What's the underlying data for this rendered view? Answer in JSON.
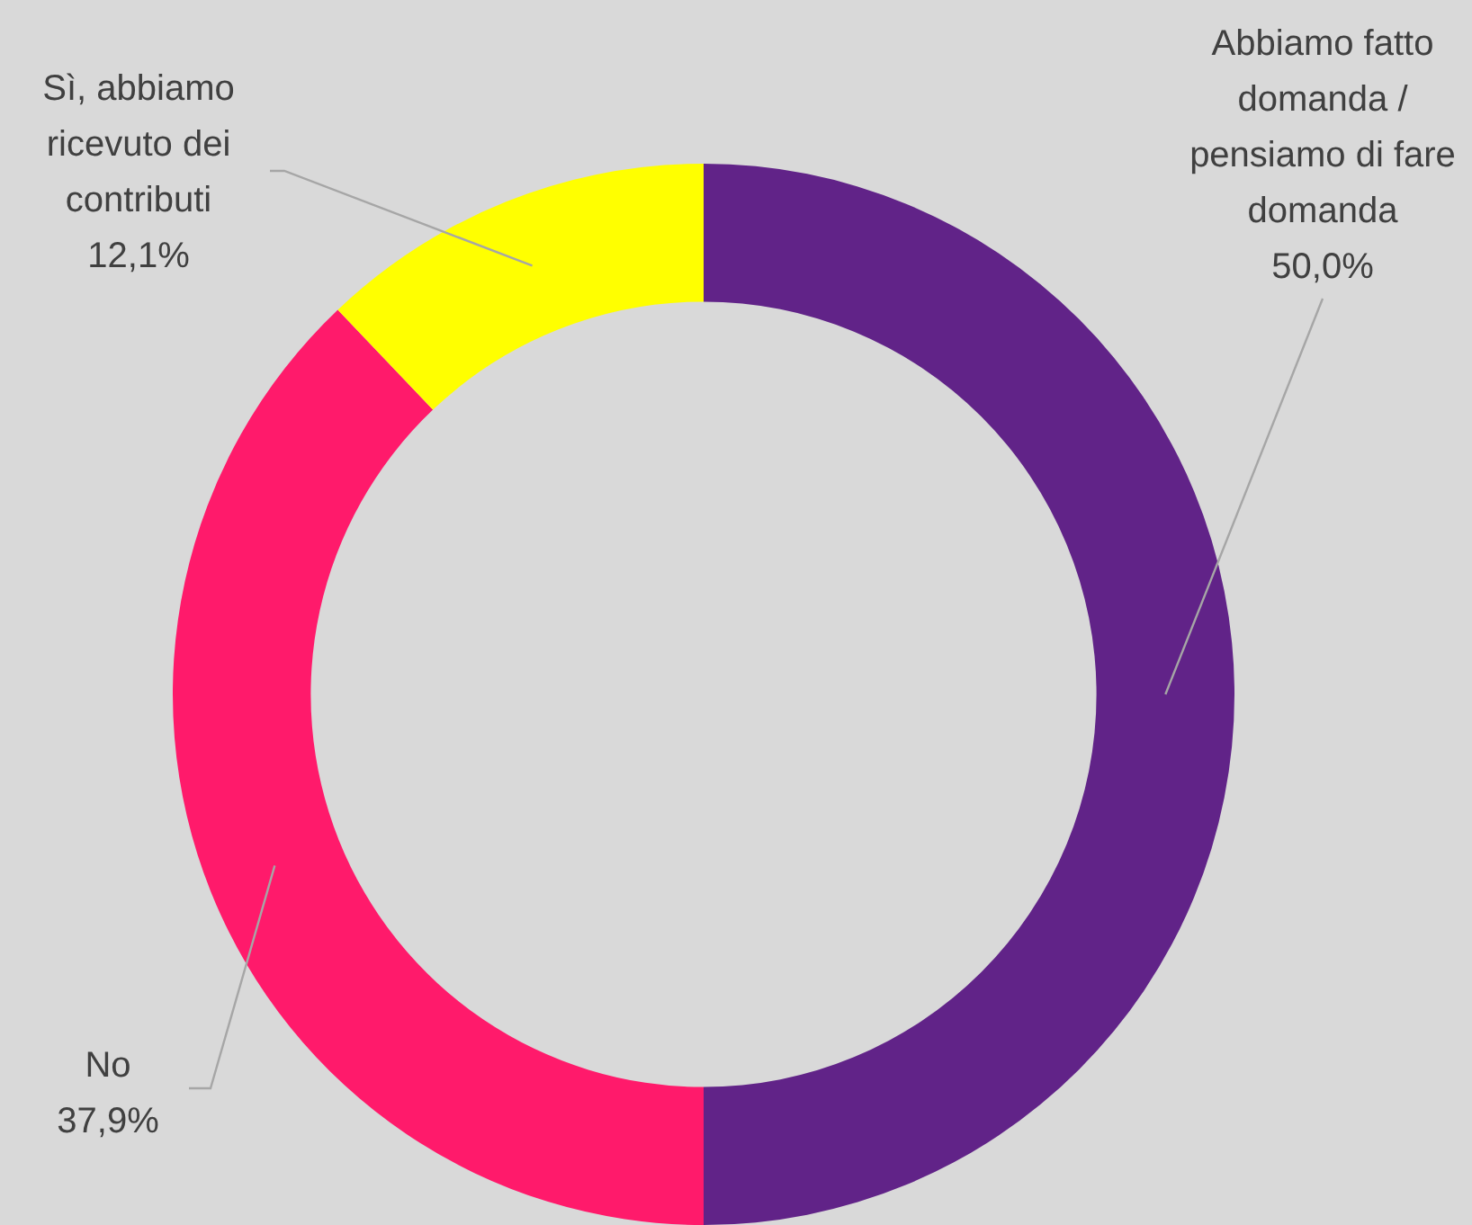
{
  "chart_data": {
    "type": "donut",
    "categories": [
      "Abbiamo fatto domanda / pensiamo di fare domanda",
      "No",
      "Sì, abbiamo ricevuto dei contributi"
    ],
    "values": [
      50.0,
      37.9,
      12.1
    ],
    "colors": [
      "#612388",
      "#ff1a6b",
      "#ffff00"
    ],
    "value_labels": [
      "50,0%",
      "37,9%",
      "12,1%"
    ],
    "legend": false
  }
}
